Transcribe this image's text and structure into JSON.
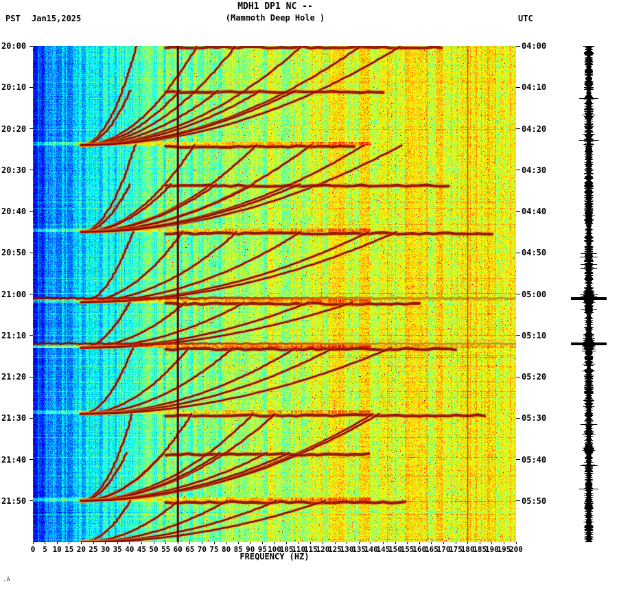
{
  "header": {
    "title_line1": "MDH1 DP1 NC --",
    "title_line2": "(Mammoth Deep Hole )",
    "left_tz": "PST",
    "date": "Jan15,2025",
    "right_tz": "UTC"
  },
  "x_axis": {
    "label": "FREQUENCY (HZ)",
    "min": 0,
    "max": 200,
    "ticks": [
      0,
      5,
      10,
      15,
      20,
      25,
      30,
      35,
      40,
      45,
      50,
      55,
      60,
      65,
      70,
      75,
      80,
      85,
      90,
      95,
      100,
      105,
      110,
      115,
      120,
      125,
      130,
      135,
      140,
      145,
      150,
      155,
      160,
      165,
      170,
      175,
      180,
      185,
      190,
      195,
      200
    ]
  },
  "y_axis_left": {
    "labels": [
      "20:00",
      "20:10",
      "20:20",
      "20:30",
      "20:40",
      "20:50",
      "21:00",
      "21:10",
      "21:20",
      "21:30",
      "21:40",
      "21:50"
    ]
  },
  "y_axis_right": {
    "labels": [
      "04:00",
      "04:10",
      "04:20",
      "04:30",
      "04:40",
      "04:50",
      "05:00",
      "05:10",
      "05:20",
      "05:30",
      "05:40",
      "05:50"
    ]
  },
  "corner_mark": ".A",
  "chart_data": {
    "type": "heatmap",
    "subtype": "spectrogram",
    "title": "MDH1 DP1 NC -- (Mammoth Deep Hole )",
    "station": "MDH1 DP1 NC",
    "station_name": "Mammoth Deep Hole",
    "date": "Jan15,2025",
    "xlabel": "FREQUENCY (HZ)",
    "freq_range_hz": [
      0,
      200
    ],
    "time_range_pst": [
      "20:00",
      "22:00"
    ],
    "time_range_utc": [
      "04:00",
      "06:00"
    ],
    "time_tick_step_min": 10,
    "colormap": "jet",
    "powerline_hz": [
      60,
      180
    ],
    "broadband_event_times_pst": [
      "21:01",
      "21:12"
    ],
    "tremor_block_starts_min": [
      0,
      24,
      45,
      62,
      73,
      89,
      110
    ],
    "tremor_harmonic_spacing_hz": 22,
    "tremor_harmonics": 6,
    "background_palette": {
      "low_freq": "#0e7ae6",
      "mid_freq": "#2fd8c8",
      "high_freq": "#b8cc44",
      "signal": "#8b0000",
      "powerline": "#6f0000",
      "trace": "#000000"
    },
    "trace_panel": "vertical seismogram amplitude trace with spikes at broadband events"
  }
}
